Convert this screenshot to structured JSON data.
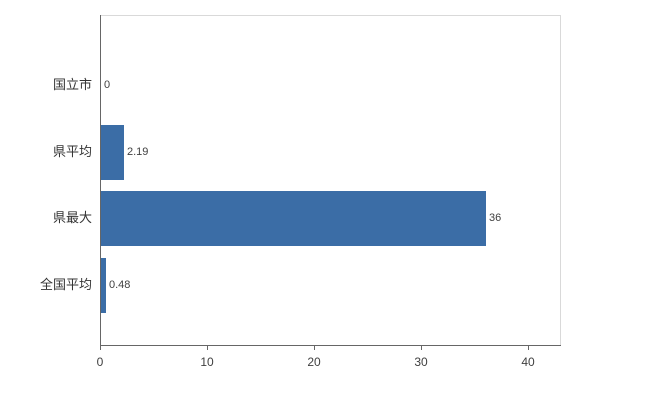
{
  "chart_data": {
    "type": "bar",
    "orientation": "horizontal",
    "title": "",
    "xlabel": "",
    "ylabel": "",
    "categories": [
      "国立市",
      "県平均",
      "県最大",
      "全国平均"
    ],
    "values": [
      0,
      2.19,
      36,
      0.48
    ],
    "value_labels": [
      "0",
      "2.19",
      "36",
      "0.48"
    ],
    "xlim": [
      0,
      43
    ],
    "xticks": [
      0,
      10,
      20,
      30,
      40
    ],
    "xtick_labels": [
      "0",
      "10",
      "20",
      "30",
      "40"
    ],
    "grid": false,
    "legend": "none",
    "colors": {
      "bar": "#3b6da6",
      "axis": "#666666",
      "plot_border": "#d9d9d9",
      "text": "#404040",
      "background": "#ffffff"
    }
  }
}
